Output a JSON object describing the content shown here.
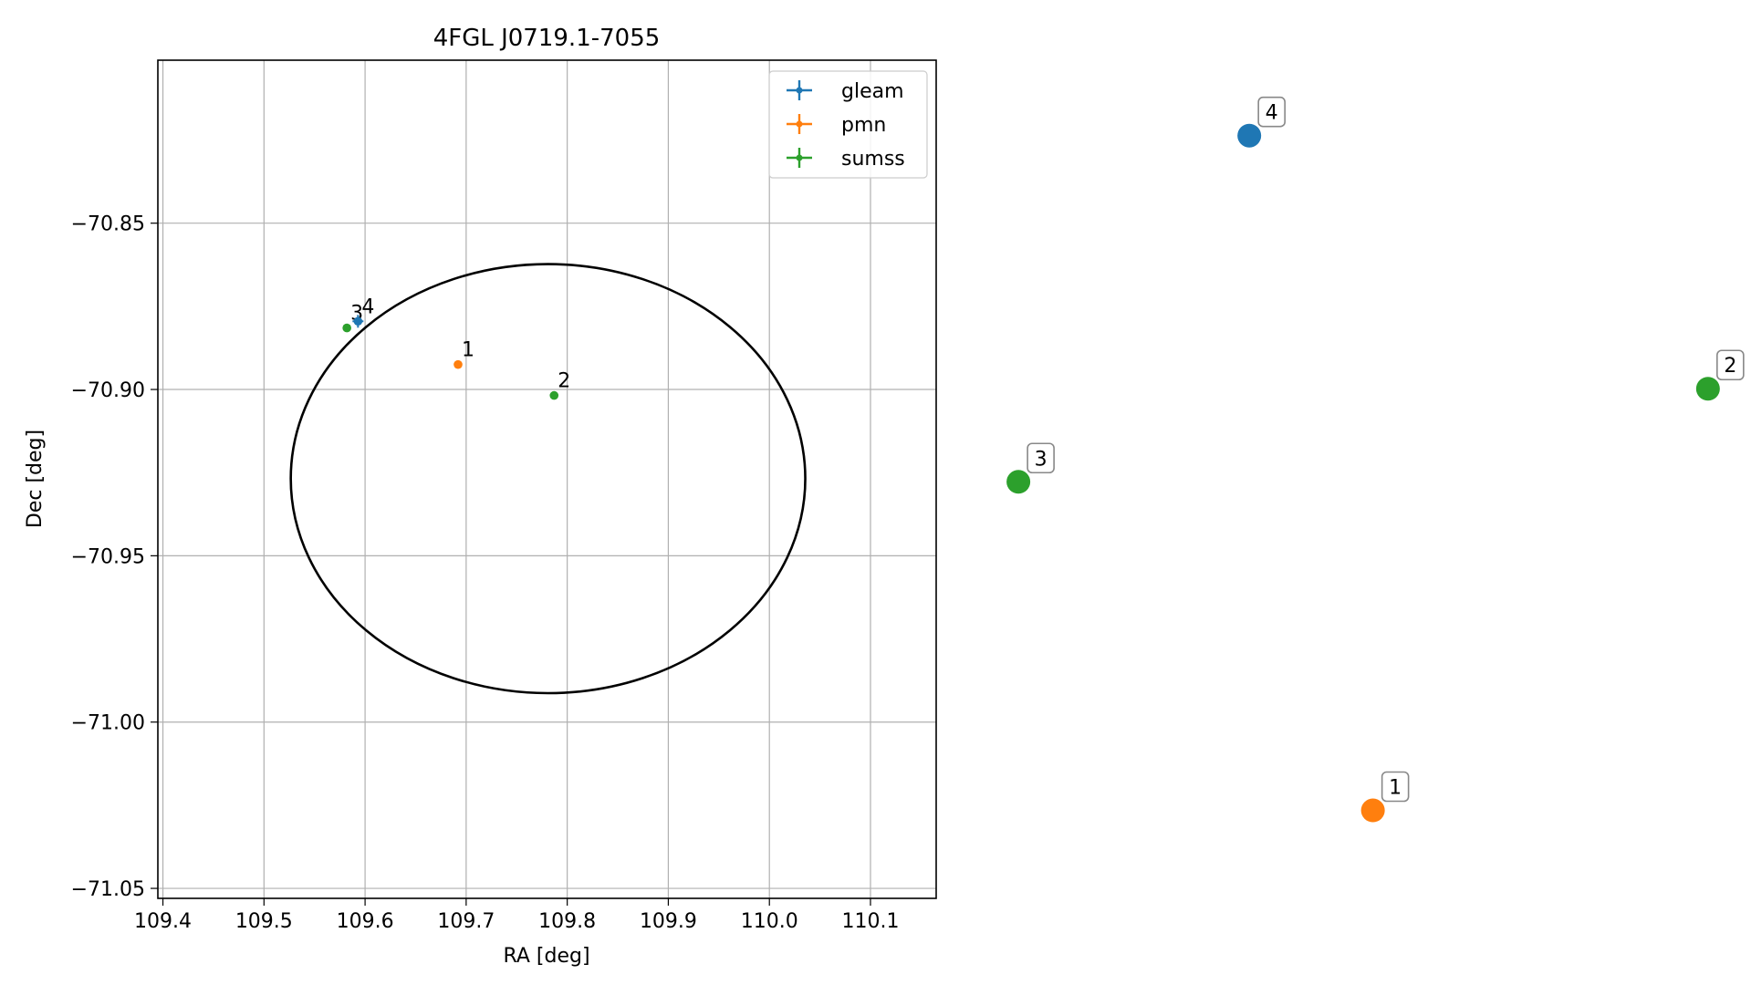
{
  "chart_data": {
    "type": "scatter",
    "title": "4FGL J0719.1-7055",
    "xlabel": "RA [deg]",
    "ylabel": "Dec [deg]",
    "xlim": [
      109.395,
      110.165
    ],
    "ylim": [
      -71.053,
      -70.801
    ],
    "xticks": [
      109.4,
      109.5,
      109.6,
      109.7,
      109.8,
      109.9,
      110.0,
      110.1
    ],
    "xtick_labels": [
      "109.4",
      "109.5",
      "109.6",
      "109.7",
      "109.8",
      "109.9",
      "110.0",
      "110.1"
    ],
    "yticks": [
      -70.85,
      -70.9,
      -70.95,
      -71.0,
      -71.05
    ],
    "ytick_labels": [
      "−70.85",
      "−70.90",
      "−70.95",
      "−71.00",
      "−71.05"
    ],
    "grid": true,
    "legend_position": "top-right",
    "series": [
      {
        "name": "gleam",
        "color": "#1f77b4"
      },
      {
        "name": "pmn",
        "color": "#ff7f0e"
      },
      {
        "name": "sumss",
        "color": "#2ca02c"
      }
    ],
    "points": [
      {
        "label": "1",
        "series": "pmn",
        "ra": 109.692,
        "dec": -70.8925
      },
      {
        "label": "2",
        "series": "sumss",
        "ra": 109.787,
        "dec": -70.9018
      },
      {
        "label": "3",
        "series": "sumss",
        "ra": 109.582,
        "dec": -70.8815
      },
      {
        "label": "4",
        "series": "gleam",
        "ra": 109.593,
        "dec": -70.8795
      }
    ],
    "ellipse": {
      "center_ra": 109.781,
      "center_dec": -70.9268,
      "semi_ra": 0.2545,
      "semi_dec": 0.0645,
      "color": "#000000"
    },
    "offset_panel": {
      "points": [
        {
          "label": "1",
          "color": "#ff7f0e",
          "u": 0.516,
          "v": 0.105
        },
        {
          "label": "2",
          "color": "#2ca02c",
          "u": 0.947,
          "v": 0.608
        },
        {
          "label": "3",
          "color": "#2ca02c",
          "u": 0.06,
          "v": 0.497
        },
        {
          "label": "4",
          "color": "#1f77b4",
          "u": 0.357,
          "v": 0.91
        }
      ]
    }
  }
}
